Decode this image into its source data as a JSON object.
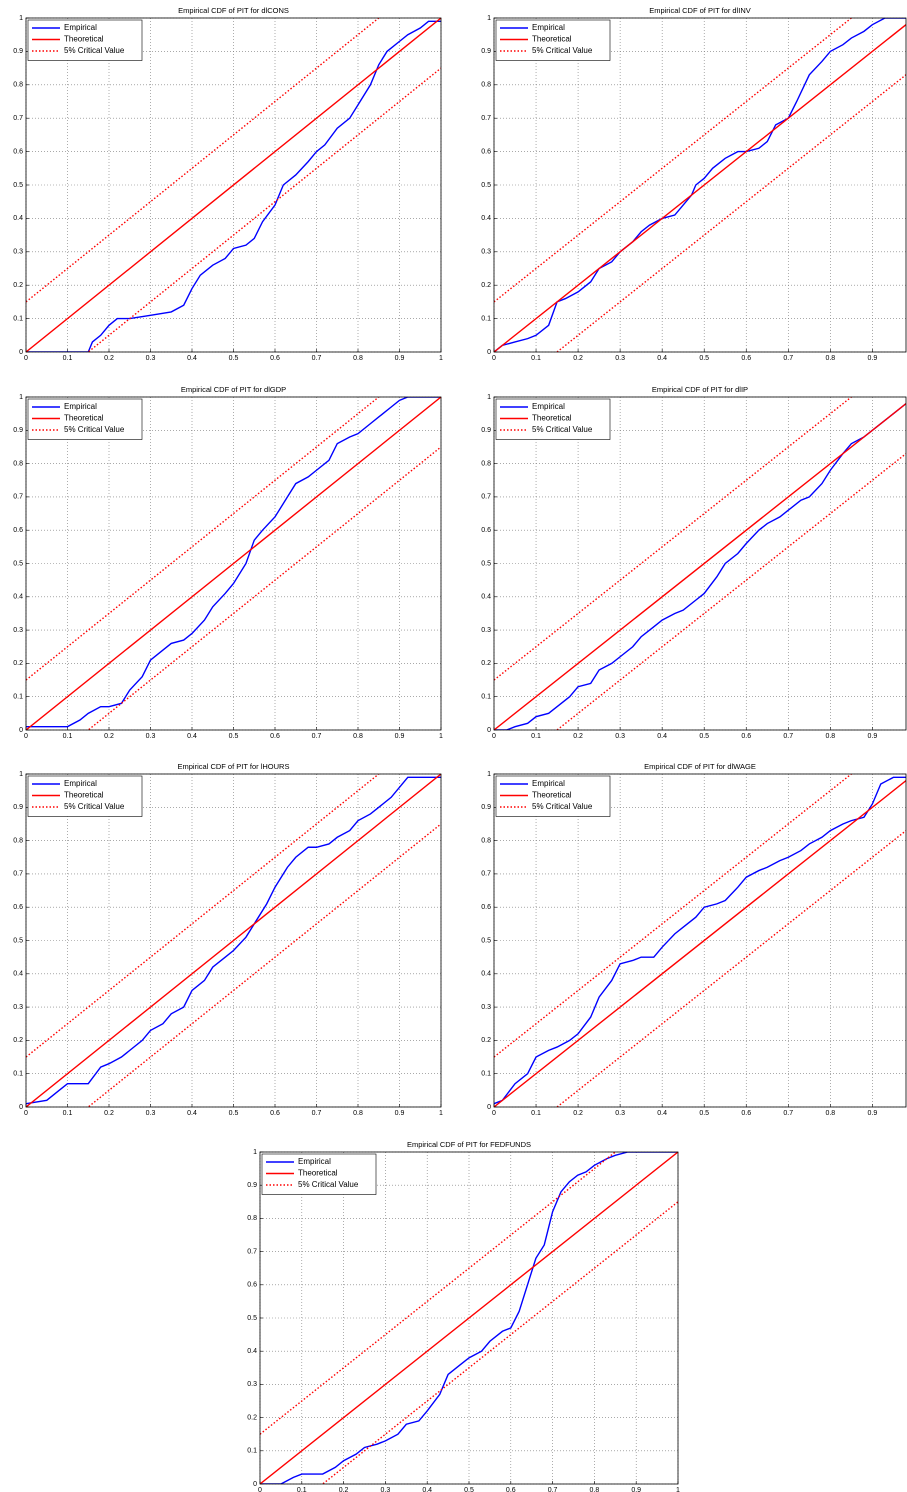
{
  "chart_data": [
    {
      "type": "line",
      "title": "Empirical CDF of PIT for dlCONS",
      "xlim": [
        0,
        1
      ],
      "ylim": [
        0,
        1
      ],
      "xticks": [
        0,
        0.1,
        0.2,
        0.3,
        0.4,
        0.5,
        0.6,
        0.7,
        0.8,
        0.9,
        1
      ],
      "yticks": [
        0,
        0.1,
        0.2,
        0.3,
        0.4,
        0.5,
        0.6,
        0.7,
        0.8,
        0.9,
        1
      ],
      "grid": true,
      "legend": "upper-left",
      "series": [
        {
          "name": "Empirical",
          "color": "#0000ff",
          "linestyle": "solid",
          "x": [
            0,
            0.15,
            0.16,
            0.18,
            0.2,
            0.22,
            0.25,
            0.3,
            0.35,
            0.38,
            0.4,
            0.42,
            0.45,
            0.48,
            0.5,
            0.53,
            0.55,
            0.57,
            0.6,
            0.62,
            0.65,
            0.68,
            0.7,
            0.72,
            0.75,
            0.78,
            0.8,
            0.83,
            0.85,
            0.87,
            0.9,
            0.92,
            0.95,
            0.97,
            1
          ],
          "values": [
            0,
            0,
            0.03,
            0.05,
            0.08,
            0.1,
            0.1,
            0.11,
            0.12,
            0.14,
            0.19,
            0.23,
            0.26,
            0.28,
            0.31,
            0.32,
            0.34,
            0.39,
            0.44,
            0.5,
            0.53,
            0.57,
            0.6,
            0.62,
            0.67,
            0.7,
            0.74,
            0.8,
            0.86,
            0.9,
            0.93,
            0.95,
            0.97,
            0.99,
            0.99
          ]
        },
        {
          "name": "Theoretical",
          "color": "#ff0000",
          "linestyle": "solid",
          "x": [
            0,
            1
          ],
          "values": [
            0,
            1
          ]
        },
        {
          "name": "5% Critical Value",
          "color": "#ff0000",
          "linestyle": "dotted",
          "x": [
            0,
            1
          ],
          "values": [
            0.15,
            1.15
          ],
          "lower": [
            -0.15,
            0.85
          ]
        }
      ]
    },
    {
      "type": "line",
      "title": "Empirical CDF of PIT for dlINV",
      "xlim": [
        0,
        0.98
      ],
      "ylim": [
        0,
        1
      ],
      "xticks": [
        0,
        0.1,
        0.2,
        0.3,
        0.4,
        0.5,
        0.6,
        0.7,
        0.8,
        0.9
      ],
      "yticks": [
        0,
        0.1,
        0.2,
        0.3,
        0.4,
        0.5,
        0.6,
        0.7,
        0.8,
        0.9,
        1
      ],
      "grid": true,
      "legend": "upper-left",
      "series": [
        {
          "name": "Empirical",
          "color": "#0000ff",
          "linestyle": "solid",
          "x": [
            0,
            0.02,
            0.05,
            0.08,
            0.1,
            0.13,
            0.15,
            0.17,
            0.2,
            0.23,
            0.25,
            0.28,
            0.3,
            0.33,
            0.35,
            0.37,
            0.4,
            0.43,
            0.45,
            0.47,
            0.48,
            0.5,
            0.52,
            0.55,
            0.58,
            0.6,
            0.63,
            0.65,
            0.67,
            0.7,
            0.72,
            0.75,
            0.78,
            0.8,
            0.83,
            0.85,
            0.88,
            0.9,
            0.93,
            0.98
          ],
          "values": [
            0,
            0.02,
            0.03,
            0.04,
            0.05,
            0.08,
            0.15,
            0.16,
            0.18,
            0.21,
            0.25,
            0.27,
            0.3,
            0.33,
            0.36,
            0.38,
            0.4,
            0.41,
            0.44,
            0.47,
            0.5,
            0.52,
            0.55,
            0.58,
            0.6,
            0.6,
            0.61,
            0.63,
            0.68,
            0.7,
            0.75,
            0.83,
            0.87,
            0.9,
            0.92,
            0.94,
            0.96,
            0.98,
            1,
            1
          ]
        },
        {
          "name": "Theoretical",
          "color": "#ff0000",
          "linestyle": "solid",
          "x": [
            0,
            1
          ],
          "values": [
            0,
            1
          ]
        },
        {
          "name": "5% Critical Value",
          "color": "#ff0000",
          "linestyle": "dotted",
          "x": [
            0,
            1
          ],
          "values": [
            0.15,
            1.15
          ],
          "lower": [
            -0.15,
            0.85
          ]
        }
      ]
    },
    {
      "type": "line",
      "title": "Empirical CDF of PIT for dlGDP",
      "xlim": [
        0,
        1
      ],
      "ylim": [
        0,
        1
      ],
      "xticks": [
        0,
        0.1,
        0.2,
        0.3,
        0.4,
        0.5,
        0.6,
        0.7,
        0.8,
        0.9,
        1
      ],
      "yticks": [
        0,
        0.1,
        0.2,
        0.3,
        0.4,
        0.5,
        0.6,
        0.7,
        0.8,
        0.9,
        1
      ],
      "grid": true,
      "legend": "upper-left",
      "series": [
        {
          "name": "Empirical",
          "color": "#0000ff",
          "linestyle": "solid",
          "x": [
            0,
            0.1,
            0.13,
            0.15,
            0.18,
            0.2,
            0.23,
            0.25,
            0.28,
            0.3,
            0.33,
            0.35,
            0.38,
            0.4,
            0.43,
            0.45,
            0.48,
            0.5,
            0.53,
            0.55,
            0.57,
            0.6,
            0.63,
            0.65,
            0.68,
            0.7,
            0.73,
            0.75,
            0.78,
            0.8,
            0.83,
            0.85,
            0.88,
            0.9,
            0.92,
            1
          ],
          "values": [
            0.01,
            0.01,
            0.03,
            0.05,
            0.07,
            0.07,
            0.08,
            0.12,
            0.16,
            0.21,
            0.24,
            0.26,
            0.27,
            0.29,
            0.33,
            0.37,
            0.41,
            0.44,
            0.5,
            0.57,
            0.6,
            0.64,
            0.7,
            0.74,
            0.76,
            0.78,
            0.81,
            0.86,
            0.88,
            0.89,
            0.92,
            0.94,
            0.97,
            0.99,
            1,
            1
          ]
        },
        {
          "name": "Theoretical",
          "color": "#ff0000",
          "linestyle": "solid",
          "x": [
            0,
            1
          ],
          "values": [
            0,
            1
          ]
        },
        {
          "name": "5% Critical Value",
          "color": "#ff0000",
          "linestyle": "dotted",
          "x": [
            0,
            1
          ],
          "values": [
            0.15,
            1.15
          ],
          "lower": [
            -0.15,
            0.85
          ]
        }
      ]
    },
    {
      "type": "line",
      "title": "Empirical CDF of PIT for dlIP",
      "xlim": [
        0,
        0.98
      ],
      "ylim": [
        0,
        1
      ],
      "xticks": [
        0,
        0.1,
        0.2,
        0.3,
        0.4,
        0.5,
        0.6,
        0.7,
        0.8,
        0.9
      ],
      "yticks": [
        0,
        0.1,
        0.2,
        0.3,
        0.4,
        0.5,
        0.6,
        0.7,
        0.8,
        0.9,
        1
      ],
      "grid": true,
      "legend": "upper-left",
      "series": [
        {
          "name": "Empirical",
          "color": "#0000ff",
          "linestyle": "solid",
          "x": [
            0,
            0.03,
            0.05,
            0.08,
            0.1,
            0.13,
            0.15,
            0.18,
            0.2,
            0.23,
            0.25,
            0.28,
            0.3,
            0.33,
            0.35,
            0.38,
            0.4,
            0.43,
            0.45,
            0.48,
            0.5,
            0.53,
            0.55,
            0.58,
            0.6,
            0.63,
            0.65,
            0.68,
            0.7,
            0.73,
            0.75,
            0.78,
            0.8,
            0.83,
            0.85,
            0.88,
            0.9,
            0.93,
            0.95,
            0.98
          ],
          "values": [
            0,
            0,
            0.01,
            0.02,
            0.04,
            0.05,
            0.07,
            0.1,
            0.13,
            0.14,
            0.18,
            0.2,
            0.22,
            0.25,
            0.28,
            0.31,
            0.33,
            0.35,
            0.36,
            0.39,
            0.41,
            0.46,
            0.5,
            0.53,
            0.56,
            0.6,
            0.62,
            0.64,
            0.66,
            0.69,
            0.7,
            0.74,
            0.78,
            0.83,
            0.86,
            0.88,
            0.9,
            0.93,
            0.95,
            0.98
          ]
        },
        {
          "name": "Theoretical",
          "color": "#ff0000",
          "linestyle": "solid",
          "x": [
            0,
            1
          ],
          "values": [
            0,
            1
          ]
        },
        {
          "name": "5% Critical Value",
          "color": "#ff0000",
          "linestyle": "dotted",
          "x": [
            0,
            1
          ],
          "values": [
            0.15,
            1.15
          ],
          "lower": [
            -0.15,
            0.85
          ]
        }
      ]
    },
    {
      "type": "line",
      "title": "Empirical CDF of PIT for lHOURS",
      "xlim": [
        0,
        1
      ],
      "ylim": [
        0,
        1
      ],
      "xticks": [
        0,
        0.1,
        0.2,
        0.3,
        0.4,
        0.5,
        0.6,
        0.7,
        0.8,
        0.9,
        1
      ],
      "yticks": [
        0,
        0.1,
        0.2,
        0.3,
        0.4,
        0.5,
        0.6,
        0.7,
        0.8,
        0.9,
        1
      ],
      "grid": true,
      "legend": "upper-left",
      "series": [
        {
          "name": "Empirical",
          "color": "#0000ff",
          "linestyle": "solid",
          "x": [
            0,
            0.05,
            0.08,
            0.1,
            0.13,
            0.15,
            0.18,
            0.2,
            0.23,
            0.25,
            0.28,
            0.3,
            0.33,
            0.35,
            0.38,
            0.4,
            0.43,
            0.45,
            0.48,
            0.5,
            0.53,
            0.55,
            0.58,
            0.6,
            0.63,
            0.65,
            0.68,
            0.7,
            0.73,
            0.75,
            0.78,
            0.8,
            0.83,
            0.85,
            0.88,
            0.9,
            0.92,
            1
          ],
          "values": [
            0.01,
            0.02,
            0.05,
            0.07,
            0.07,
            0.07,
            0.12,
            0.13,
            0.15,
            0.17,
            0.2,
            0.23,
            0.25,
            0.28,
            0.3,
            0.35,
            0.38,
            0.42,
            0.45,
            0.47,
            0.51,
            0.55,
            0.61,
            0.66,
            0.72,
            0.75,
            0.78,
            0.78,
            0.79,
            0.81,
            0.83,
            0.86,
            0.88,
            0.9,
            0.93,
            0.96,
            0.99,
            0.99
          ]
        },
        {
          "name": "Theoretical",
          "color": "#ff0000",
          "linestyle": "solid",
          "x": [
            0,
            1
          ],
          "values": [
            0,
            1
          ]
        },
        {
          "name": "5% Critical Value",
          "color": "#ff0000",
          "linestyle": "dotted",
          "x": [
            0,
            1
          ],
          "values": [
            0.15,
            1.15
          ],
          "lower": [
            -0.15,
            0.85
          ]
        }
      ]
    },
    {
      "type": "line",
      "title": "Empirical CDF of PIT for dlWAGE",
      "xlim": [
        0,
        0.98
      ],
      "ylim": [
        0,
        1
      ],
      "xticks": [
        0,
        0.1,
        0.2,
        0.3,
        0.4,
        0.5,
        0.6,
        0.7,
        0.8,
        0.9
      ],
      "yticks": [
        0,
        0.1,
        0.2,
        0.3,
        0.4,
        0.5,
        0.6,
        0.7,
        0.8,
        0.9,
        1
      ],
      "grid": true,
      "legend": "upper-left",
      "series": [
        {
          "name": "Empirical",
          "color": "#0000ff",
          "linestyle": "solid",
          "x": [
            0,
            0.02,
            0.05,
            0.08,
            0.1,
            0.13,
            0.15,
            0.18,
            0.2,
            0.23,
            0.25,
            0.28,
            0.3,
            0.33,
            0.35,
            0.38,
            0.4,
            0.43,
            0.45,
            0.48,
            0.5,
            0.53,
            0.55,
            0.58,
            0.6,
            0.63,
            0.65,
            0.68,
            0.7,
            0.73,
            0.75,
            0.78,
            0.8,
            0.83,
            0.85,
            0.88,
            0.9,
            0.92,
            0.95,
            0.98
          ],
          "values": [
            0.01,
            0.02,
            0.07,
            0.1,
            0.15,
            0.17,
            0.18,
            0.2,
            0.22,
            0.27,
            0.33,
            0.38,
            0.43,
            0.44,
            0.45,
            0.45,
            0.48,
            0.52,
            0.54,
            0.57,
            0.6,
            0.61,
            0.62,
            0.66,
            0.69,
            0.71,
            0.72,
            0.74,
            0.75,
            0.77,
            0.79,
            0.81,
            0.83,
            0.85,
            0.86,
            0.87,
            0.91,
            0.97,
            0.99,
            0.99
          ]
        },
        {
          "name": "Theoretical",
          "color": "#ff0000",
          "linestyle": "solid",
          "x": [
            0,
            1
          ],
          "values": [
            0,
            1
          ]
        },
        {
          "name": "5% Critical Value",
          "color": "#ff0000",
          "linestyle": "dotted",
          "x": [
            0,
            1
          ],
          "values": [
            0.15,
            1.15
          ],
          "lower": [
            -0.15,
            0.85
          ]
        }
      ]
    },
    {
      "type": "line",
      "title": "Empirical CDF of PIT for FEDFUNDS",
      "xlim": [
        0,
        1
      ],
      "ylim": [
        0,
        1
      ],
      "xticks": [
        0,
        0.1,
        0.2,
        0.3,
        0.4,
        0.5,
        0.6,
        0.7,
        0.8,
        0.9,
        1
      ],
      "yticks": [
        0,
        0.1,
        0.2,
        0.3,
        0.4,
        0.5,
        0.6,
        0.7,
        0.8,
        0.9,
        1
      ],
      "grid": true,
      "legend": "upper-left",
      "series": [
        {
          "name": "Empirical",
          "color": "#0000ff",
          "linestyle": "solid",
          "x": [
            0,
            0.05,
            0.08,
            0.1,
            0.15,
            0.18,
            0.2,
            0.23,
            0.25,
            0.28,
            0.3,
            0.33,
            0.35,
            0.38,
            0.4,
            0.43,
            0.45,
            0.48,
            0.5,
            0.53,
            0.55,
            0.58,
            0.6,
            0.62,
            0.64,
            0.66,
            0.68,
            0.7,
            0.72,
            0.74,
            0.76,
            0.78,
            0.8,
            0.83,
            0.85,
            0.88,
            1
          ],
          "values": [
            0,
            0,
            0.02,
            0.03,
            0.03,
            0.05,
            0.07,
            0.09,
            0.11,
            0.12,
            0.13,
            0.15,
            0.18,
            0.19,
            0.22,
            0.27,
            0.33,
            0.36,
            0.38,
            0.4,
            0.43,
            0.46,
            0.47,
            0.52,
            0.6,
            0.68,
            0.72,
            0.82,
            0.88,
            0.91,
            0.93,
            0.94,
            0.96,
            0.98,
            0.99,
            1,
            1
          ]
        },
        {
          "name": "Theoretical",
          "color": "#ff0000",
          "linestyle": "solid",
          "x": [
            0,
            1
          ],
          "values": [
            0,
            1
          ]
        },
        {
          "name": "5% Critical Value",
          "color": "#ff0000",
          "linestyle": "dotted",
          "x": [
            0,
            1
          ],
          "values": [
            0.15,
            1.15
          ],
          "lower": [
            -0.15,
            0.85
          ]
        }
      ]
    }
  ]
}
